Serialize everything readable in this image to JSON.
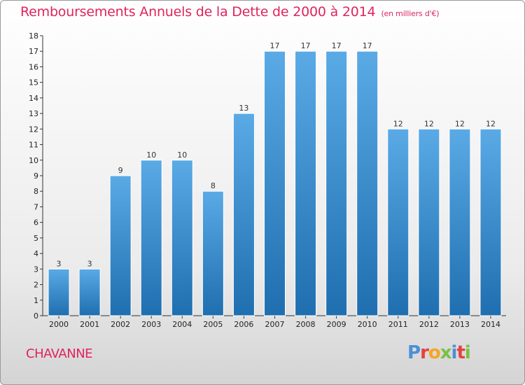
{
  "header": {
    "title": "Remboursements Annuels de la Dette de 2000 à 2014",
    "subtitle": "(en milliers d'€)"
  },
  "footer": {
    "commune": "CHAVANNE",
    "logo_text": "Proxiti",
    "logo_colors": [
      "#4a90d9",
      "#e8403f",
      "#f5a623",
      "#7ac143",
      "#4a90d9",
      "#e8403f",
      "#7ac143"
    ]
  },
  "chart_data": {
    "type": "bar",
    "categories": [
      "2000",
      "2001",
      "2002",
      "2003",
      "2004",
      "2005",
      "2006",
      "2007",
      "2008",
      "2009",
      "2010",
      "2011",
      "2012",
      "2013",
      "2014"
    ],
    "values": [
      3,
      3,
      9,
      10,
      10,
      8,
      13,
      17,
      17,
      17,
      17,
      12,
      12,
      12,
      12
    ],
    "data_labels": [
      "3",
      "3",
      "9",
      "10",
      "10",
      "8",
      "13",
      "17",
      "17",
      "17",
      "17",
      "12",
      "12",
      "12",
      "12"
    ],
    "ylim": [
      0,
      18
    ],
    "yticks": [
      "0",
      "1",
      "2",
      "3",
      "4",
      "5",
      "6",
      "7",
      "8",
      "9",
      "10",
      "11",
      "12",
      "13",
      "14",
      "15",
      "16",
      "17",
      "18"
    ],
    "grid": false,
    "bar_color_top": "#5aaae6",
    "bar_color_bottom": "#1f6fb0",
    "title_color": "#e0245e"
  }
}
